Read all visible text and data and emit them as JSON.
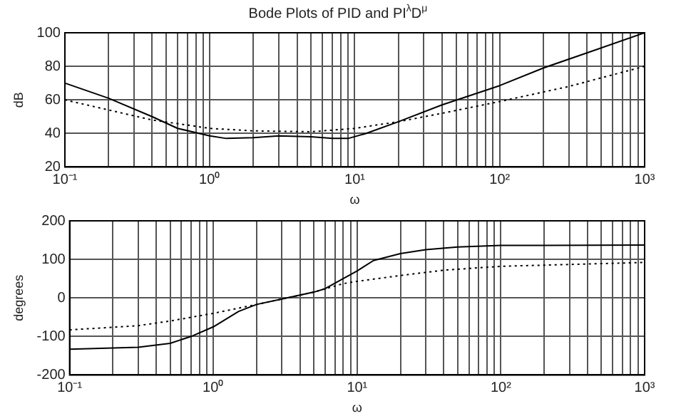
{
  "chart_data": [
    {
      "type": "line",
      "title": "Bode Plots of PID and PI$^{λ}$D$^{μ}$",
      "xlabel": "ω",
      "ylabel": "dB",
      "log": "x",
      "grid": true,
      "marker": "none",
      "xlim": [
        0.1,
        1000
      ],
      "xticks": [
        {
          "value": 0.1,
          "label": "10⁻¹"
        },
        {
          "value": 0.2,
          "label": null
        },
        {
          "value": 0.3,
          "label": null
        },
        {
          "value": 0.4,
          "label": null
        },
        {
          "value": 0.5,
          "label": null
        },
        {
          "value": 0.6,
          "label": null
        },
        {
          "value": 0.7,
          "label": null
        },
        {
          "value": 0.8,
          "label": null
        },
        {
          "value": 0.9,
          "label": null
        },
        {
          "value": 1,
          "label": "10⁰"
        },
        {
          "value": 2,
          "label": null
        },
        {
          "value": 3,
          "label": null
        },
        {
          "value": 4,
          "label": null
        },
        {
          "value": 5,
          "label": null
        },
        {
          "value": 6,
          "label": null
        },
        {
          "value": 7,
          "label": null
        },
        {
          "value": 8,
          "label": null
        },
        {
          "value": 9,
          "label": null
        },
        {
          "value": 10,
          "label": "10¹"
        },
        {
          "value": 20,
          "label": null
        },
        {
          "value": 30,
          "label": null
        },
        {
          "value": 40,
          "label": null
        },
        {
          "value": 50,
          "label": null
        },
        {
          "value": 60,
          "label": null
        },
        {
          "value": 70,
          "label": null
        },
        {
          "value": 80,
          "label": null
        },
        {
          "value": 90,
          "label": null
        },
        {
          "value": 100,
          "label": "10²"
        },
        {
          "value": 200,
          "label": null
        },
        {
          "value": 300,
          "label": null
        },
        {
          "value": 400,
          "label": null
        },
        {
          "value": 500,
          "label": null
        },
        {
          "value": 600,
          "label": null
        },
        {
          "value": 700,
          "label": null
        },
        {
          "value": 800,
          "label": null
        },
        {
          "value": 900,
          "label": null
        },
        {
          "value": 1000,
          "label": "10³"
        }
      ],
      "ylim": [
        20,
        100
      ],
      "yticks": [
        20,
        40,
        60,
        80,
        100
      ],
      "series": [
        {
          "color": "#000000",
          "line_style": "solid",
          "x": [
            0.1,
            0.2,
            0.4,
            0.6,
            1,
            1.3,
            2,
            3,
            5,
            7,
            9,
            12,
            20,
            40,
            100,
            200,
            400,
            1000
          ],
          "values": [
            70,
            61,
            50,
            43,
            38.5,
            37,
            37.5,
            38.5,
            38,
            37,
            37,
            40,
            47,
            57,
            68.5,
            79,
            88,
            100
          ]
        },
        {
          "color": "#000000",
          "line_style": "dotted",
          "x": [
            0.1,
            0.2,
            0.4,
            0.7,
            1,
            2,
            5,
            10,
            20,
            40,
            100,
            300,
            1000
          ],
          "values": [
            60,
            54,
            48,
            45,
            43,
            41.5,
            41,
            43,
            47,
            52,
            59,
            68,
            80
          ]
        }
      ]
    },
    {
      "type": "line",
      "xlabel": "ω",
      "ylabel": "degrees",
      "log": "x",
      "grid": true,
      "marker": "none",
      "xlim": [
        0.1,
        1000
      ],
      "xticks": [
        {
          "value": 0.1,
          "label": "10⁻¹"
        },
        {
          "value": 0.2,
          "label": null
        },
        {
          "value": 0.3,
          "label": null
        },
        {
          "value": 0.4,
          "label": null
        },
        {
          "value": 0.5,
          "label": null
        },
        {
          "value": 0.6,
          "label": null
        },
        {
          "value": 0.7,
          "label": null
        },
        {
          "value": 0.8,
          "label": null
        },
        {
          "value": 0.9,
          "label": null
        },
        {
          "value": 1,
          "label": "10⁰"
        },
        {
          "value": 2,
          "label": null
        },
        {
          "value": 3,
          "label": null
        },
        {
          "value": 4,
          "label": null
        },
        {
          "value": 5,
          "label": null
        },
        {
          "value": 6,
          "label": null
        },
        {
          "value": 7,
          "label": null
        },
        {
          "value": 8,
          "label": null
        },
        {
          "value": 9,
          "label": null
        },
        {
          "value": 10,
          "label": "10¹"
        },
        {
          "value": 20,
          "label": null
        },
        {
          "value": 30,
          "label": null
        },
        {
          "value": 40,
          "label": null
        },
        {
          "value": 50,
          "label": null
        },
        {
          "value": 60,
          "label": null
        },
        {
          "value": 70,
          "label": null
        },
        {
          "value": 80,
          "label": null
        },
        {
          "value": 90,
          "label": null
        },
        {
          "value": 100,
          "label": "10²"
        },
        {
          "value": 200,
          "label": null
        },
        {
          "value": 300,
          "label": null
        },
        {
          "value": 400,
          "label": null
        },
        {
          "value": 500,
          "label": null
        },
        {
          "value": 600,
          "label": null
        },
        {
          "value": 700,
          "label": null
        },
        {
          "value": 800,
          "label": null
        },
        {
          "value": 900,
          "label": null
        },
        {
          "value": 1000,
          "label": "10³"
        }
      ],
      "ylim": [
        -200,
        200
      ],
      "yticks": [
        -200,
        -100,
        0,
        100,
        200
      ],
      "series": [
        {
          "color": "#000000",
          "line_style": "solid",
          "x": [
            0.1,
            0.3,
            0.5,
            0.7,
            1,
            1.5,
            2,
            3,
            5,
            6,
            8,
            10,
            13,
            20,
            30,
            50,
            100,
            1000
          ],
          "values": [
            -133,
            -128,
            -118,
            -100,
            -75,
            -35,
            -17,
            -3,
            15,
            24,
            50,
            70,
            97,
            115,
            125,
            132,
            136,
            137
          ]
        },
        {
          "color": "#000000",
          "line_style": "dotted",
          "x": [
            0.1,
            0.3,
            0.5,
            1,
            2,
            3,
            5,
            8,
            10,
            20,
            40,
            100,
            1000
          ],
          "values": [
            -83,
            -72,
            -60,
            -40,
            -17,
            -3,
            15,
            37,
            43,
            58,
            72,
            82,
            92
          ]
        }
      ]
    }
  ]
}
